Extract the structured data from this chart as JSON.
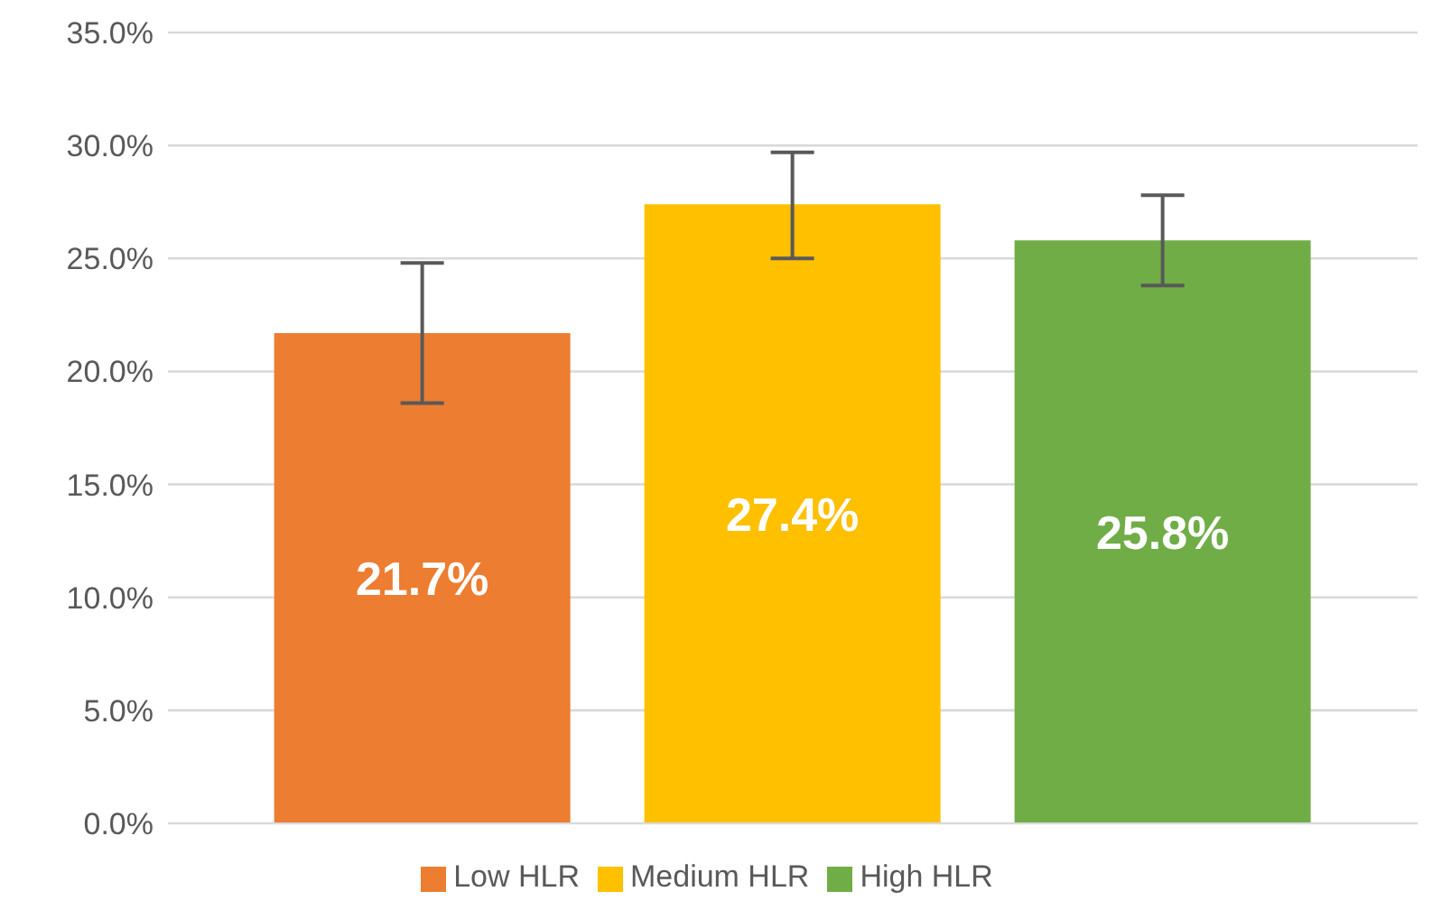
{
  "chart_data": {
    "type": "bar",
    "categories": [
      null
    ],
    "series": [
      {
        "name": "Low HLR",
        "color": "#ed7d31",
        "values": [
          21.7
        ],
        "errors": [
          [
            18.6,
            24.8
          ]
        ],
        "value_labels": [
          "21.7%"
        ]
      },
      {
        "name": "Medium HLR",
        "color": "#ffc000",
        "values": [
          27.4
        ],
        "errors": [
          [
            25.0,
            29.7
          ]
        ],
        "value_labels": [
          "27.4%"
        ]
      },
      {
        "name": "High HLR",
        "color": "#70ad47",
        "values": [
          25.8
        ],
        "errors": [
          [
            23.8,
            27.8
          ]
        ],
        "value_labels": [
          "25.8%"
        ]
      }
    ],
    "ylim": [
      0,
      35
    ],
    "yticks": [
      {
        "value": 0,
        "label": "0.0%"
      },
      {
        "value": 5,
        "label": "5.0%"
      },
      {
        "value": 10,
        "label": "10.0%"
      },
      {
        "value": 15,
        "label": "15.0%"
      },
      {
        "value": 20,
        "label": "20.0%"
      },
      {
        "value": 25,
        "label": "25.0%"
      },
      {
        "value": 30,
        "label": "30.0%"
      },
      {
        "value": 35,
        "label": "35.0%"
      }
    ],
    "grid": "y",
    "legend": "bottom"
  }
}
